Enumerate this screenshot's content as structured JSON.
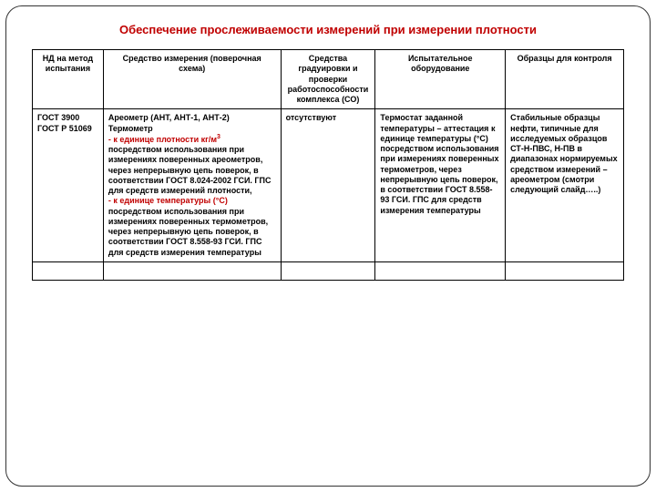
{
  "title": "Обеспечение прослеживаемости измерений при измерении плотности",
  "headers": {
    "c1": "НД на метод испытания",
    "c2": "Средство измерения (поверочная схема)",
    "c3": "Средства градуировки и проверки работоспособности комплекса (СО)",
    "c4": "Испытательное оборудование",
    "c5": "Образцы для контроля"
  },
  "row": {
    "c1": "ГОСТ 3900 ГОСТ Р 51069",
    "c2_line1": "Ареометр (АНТ, АНТ-1, АНТ-2) Термометр",
    "c2_bullet1_a": "- к единице плотности кг/м",
    "c2_bullet1_sup": "3",
    "c2_rest1": " посредством использования при измерениях поверенных ареометров, через непрерывную цепь поверок, в соответствии ГОСТ 8.024-2002 ГСИ. ГПС для средств измерений плотности,",
    "c2_bullet2": "- к единице температуры (°С)",
    "c2_rest2": " посредством использования при измерениях поверенных термометров, через непрерывную цепь поверок, в соответствии ГОСТ 8.558-93 ГСИ. ГПС для средств измерения температуры",
    "c3": "отсутствуют",
    "c4": "Термостат заданной температуры – аттестация к единице температуры (°С) посредством использования при измерениях поверенных термометров, через непрерывную цепь поверок, в соответствии ГОСТ 8.558-93 ГСИ. ГПС для средств измерения температуры",
    "c5": "Стабильные образцы нефти, типичные для исследуемых образцов СТ-Н-ПВС, Н-ПВ в диапазонах нормируемых средством измерений – ареометром (смотри следующий слайд…..)"
  }
}
